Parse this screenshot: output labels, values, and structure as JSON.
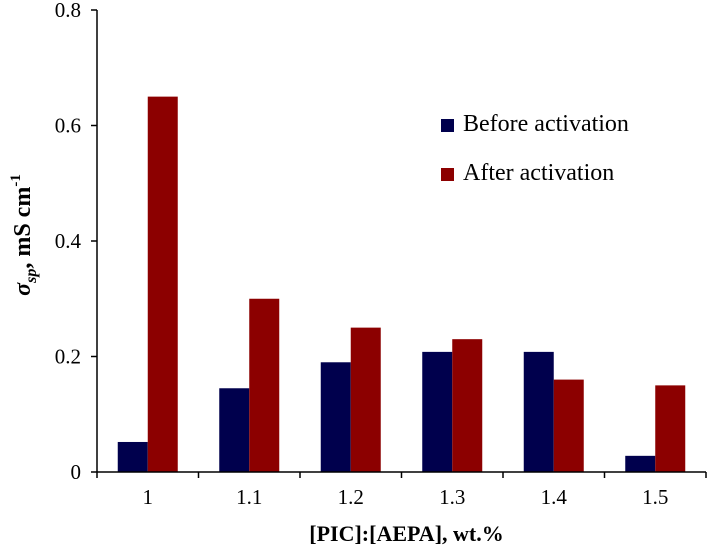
{
  "chart_data": {
    "type": "bar",
    "title": "",
    "categories": [
      "1",
      "1.1",
      "1.2",
      "1.3",
      "1.4",
      "1.5"
    ],
    "series": [
      {
        "name": "Before activation",
        "color": "#00004D",
        "values": [
          0.052,
          0.145,
          0.19,
          0.208,
          0.208,
          0.028
        ]
      },
      {
        "name": "After activation",
        "color": "#8C0000",
        "values": [
          0.65,
          0.3,
          0.25,
          0.23,
          0.16,
          0.15
        ]
      }
    ],
    "xlabel": "[PIC]:[AEPA], wt.%",
    "ylabel": {
      "symbol": "σ",
      "subscript": "sp",
      "units": ", mS cm",
      "superscript": "-1"
    },
    "ylim": [
      0,
      0.8
    ],
    "yticks": [
      0,
      0.2,
      0.4,
      0.6,
      0.8
    ],
    "ytick_labels": [
      "0",
      "0.2",
      "0.4",
      "0.6",
      "0.8"
    ],
    "grid": false,
    "legend_position": "top-right"
  }
}
